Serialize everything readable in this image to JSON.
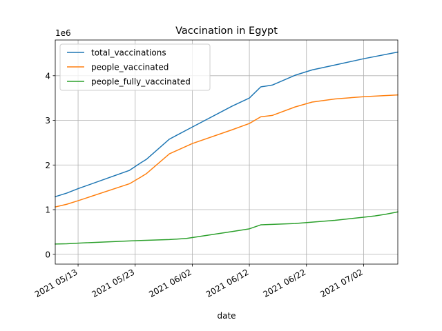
{
  "chart_data": {
    "type": "line",
    "title": "Vaccination in Egypt",
    "xlabel": "date",
    "ylabel": "",
    "y_offset_label": "1e6",
    "xlim": [
      "2021-05-09",
      "2021-07-08"
    ],
    "ylim": [
      -0.22,
      4.8
    ],
    "y_scale_multiplier": 1000000,
    "x_ticks": [
      "2021-05-13",
      "2021-05-23",
      "2021-06-02",
      "2021-06-12",
      "2021-06-22",
      "2021-07-02"
    ],
    "x_tick_labels": [
      "2021 05/13",
      "2021 05/23",
      "2021 06/02",
      "2021 06/12",
      "2021 06/22",
      "2021 07/02"
    ],
    "y_ticks": [
      0,
      1,
      2,
      3,
      4
    ],
    "y_tick_labels": [
      "0",
      "1",
      "2",
      "3",
      "4"
    ],
    "grid": true,
    "legend_position": "top-left",
    "series": [
      {
        "name": "total_vaccinations",
        "color": "#1f77b4",
        "points": [
          [
            "2021-05-09",
            1.29
          ],
          [
            "2021-05-11",
            1.37
          ],
          [
            "2021-05-13",
            1.47
          ],
          [
            "2021-05-22",
            1.88
          ],
          [
            "2021-05-24",
            2.05
          ],
          [
            "2021-05-25",
            2.13
          ],
          [
            "2021-05-29",
            2.58
          ],
          [
            "2021-06-02",
            2.85
          ],
          [
            "2021-06-09",
            3.32
          ],
          [
            "2021-06-12",
            3.5
          ],
          [
            "2021-06-14",
            3.75
          ],
          [
            "2021-06-16",
            3.79
          ],
          [
            "2021-06-20",
            4.01
          ],
          [
            "2021-06-23",
            4.13
          ],
          [
            "2021-06-27",
            4.24
          ],
          [
            "2021-07-02",
            4.38
          ],
          [
            "2021-07-08",
            4.53
          ]
        ]
      },
      {
        "name": "people_vaccinated",
        "color": "#ff7f0e",
        "points": [
          [
            "2021-05-09",
            1.06
          ],
          [
            "2021-05-11",
            1.12
          ],
          [
            "2021-05-13",
            1.2
          ],
          [
            "2021-05-22",
            1.58
          ],
          [
            "2021-05-24",
            1.73
          ],
          [
            "2021-05-25",
            1.81
          ],
          [
            "2021-05-29",
            2.25
          ],
          [
            "2021-06-02",
            2.48
          ],
          [
            "2021-06-09",
            2.79
          ],
          [
            "2021-06-12",
            2.93
          ],
          [
            "2021-06-14",
            3.08
          ],
          [
            "2021-06-16",
            3.11
          ],
          [
            "2021-06-20",
            3.3
          ],
          [
            "2021-06-23",
            3.41
          ],
          [
            "2021-06-27",
            3.48
          ],
          [
            "2021-07-02",
            3.53
          ],
          [
            "2021-07-08",
            3.57
          ]
        ]
      },
      {
        "name": "people_fully_vaccinated",
        "color": "#2ca02c",
        "points": [
          [
            "2021-05-09",
            0.23
          ],
          [
            "2021-05-11",
            0.235
          ],
          [
            "2021-05-13",
            0.25
          ],
          [
            "2021-05-22",
            0.3
          ],
          [
            "2021-05-24",
            0.31
          ],
          [
            "2021-05-29",
            0.33
          ],
          [
            "2021-06-01",
            0.355
          ],
          [
            "2021-06-09",
            0.51
          ],
          [
            "2021-06-12",
            0.57
          ],
          [
            "2021-06-14",
            0.66
          ],
          [
            "2021-06-16",
            0.67
          ],
          [
            "2021-06-20",
            0.69
          ],
          [
            "2021-06-23",
            0.72
          ],
          [
            "2021-06-27",
            0.76
          ],
          [
            "2021-07-02",
            0.83
          ],
          [
            "2021-07-04",
            0.86
          ],
          [
            "2021-07-06",
            0.9
          ],
          [
            "2021-07-08",
            0.95
          ]
        ]
      }
    ]
  }
}
